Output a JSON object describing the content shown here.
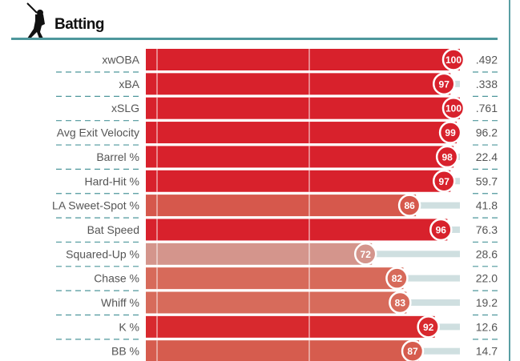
{
  "header": {
    "title": "Batting",
    "icon": "batter-silhouette-icon"
  },
  "chart_data": {
    "type": "bar",
    "orientation": "horizontal",
    "title": "Batting",
    "xlim": [
      0,
      100
    ],
    "categories": [
      "xwOBA",
      "xBA",
      "xSLG",
      "Avg Exit Velocity",
      "Barrel %",
      "Hard-Hit %",
      "LA Sweet-Spot %",
      "Bat Speed",
      "Squared-Up %",
      "Chase %",
      "Whiff %",
      "K %",
      "BB %"
    ],
    "percentiles": [
      100,
      97,
      100,
      99,
      98,
      97,
      86,
      96,
      72,
      82,
      83,
      92,
      87
    ],
    "values": [
      ".492",
      ".338",
      ".761",
      "96.2",
      "22.4",
      "59.7",
      "41.8",
      "76.3",
      "28.6",
      "22.0",
      "19.2",
      "12.6",
      "14.7"
    ],
    "colors": [
      "#d8212c",
      "#d8212c",
      "#d8212c",
      "#d8212c",
      "#d8212c",
      "#d8212c",
      "#d6584c",
      "#d8212c",
      "#d4958c",
      "#d76a5a",
      "#d76b5b",
      "#d8292e",
      "#d65c4e"
    ],
    "track_color": "#cfdfe0"
  }
}
